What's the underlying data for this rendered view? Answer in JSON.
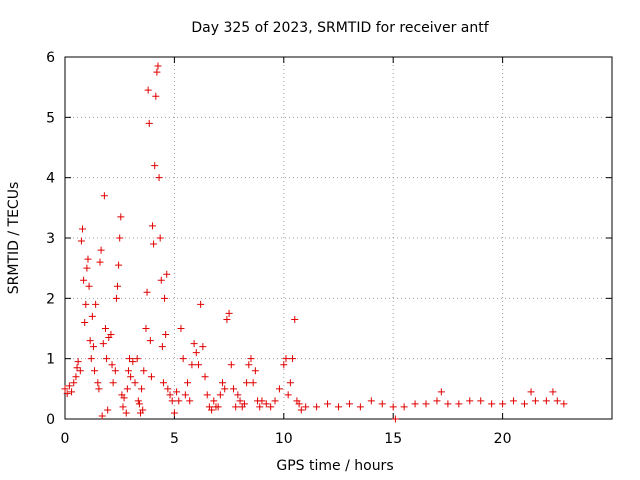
{
  "chart_data": {
    "type": "scatter",
    "title": "Day 325 of 2023, SRMTID for receiver antf",
    "xlabel": "GPS time / hours",
    "ylabel": "SRMTID / TECUs",
    "xlim": [
      0,
      25
    ],
    "ylim": [
      0,
      6
    ],
    "xticks": [
      0,
      5,
      10,
      15,
      20
    ],
    "xtick_labels": [
      "0",
      "5",
      "10",
      "15",
      "20"
    ],
    "yticks": [
      0,
      1,
      2,
      3,
      4,
      5,
      6
    ],
    "ytick_labels": [
      "0",
      "1",
      "2",
      "3",
      "4",
      "5",
      "6"
    ],
    "grid": true,
    "marker": "+",
    "series_color": "#e00000",
    "series": [
      {
        "name": "antf",
        "points": [
          [
            0.0,
            0.5
          ],
          [
            0.1,
            0.42
          ],
          [
            0.2,
            0.55
          ],
          [
            0.3,
            0.45
          ],
          [
            0.4,
            0.6
          ],
          [
            0.5,
            0.7
          ],
          [
            0.55,
            0.85
          ],
          [
            0.6,
            0.95
          ],
          [
            0.7,
            0.8
          ],
          [
            0.75,
            2.95
          ],
          [
            0.8,
            3.15
          ],
          [
            0.85,
            2.3
          ],
          [
            0.9,
            1.6
          ],
          [
            0.95,
            1.9
          ],
          [
            1.0,
            2.5
          ],
          [
            1.05,
            2.65
          ],
          [
            1.1,
            2.2
          ],
          [
            1.15,
            1.3
          ],
          [
            1.2,
            1.0
          ],
          [
            1.25,
            1.7
          ],
          [
            1.3,
            1.2
          ],
          [
            1.35,
            0.8
          ],
          [
            1.4,
            1.9
          ],
          [
            1.5,
            0.6
          ],
          [
            1.55,
            0.5
          ],
          [
            1.6,
            2.6
          ],
          [
            1.65,
            2.8
          ],
          [
            1.7,
            0.05
          ],
          [
            1.75,
            1.25
          ],
          [
            1.8,
            3.7
          ],
          [
            1.85,
            1.5
          ],
          [
            1.9,
            1.0
          ],
          [
            1.95,
            0.15
          ],
          [
            2.0,
            1.35
          ],
          [
            2.1,
            1.4
          ],
          [
            2.15,
            0.9
          ],
          [
            2.2,
            0.6
          ],
          [
            2.3,
            0.8
          ],
          [
            2.35,
            2.0
          ],
          [
            2.4,
            2.2
          ],
          [
            2.45,
            2.55
          ],
          [
            2.5,
            3.0
          ],
          [
            2.55,
            3.35
          ],
          [
            2.6,
            0.4
          ],
          [
            2.65,
            0.2
          ],
          [
            2.7,
            0.35
          ],
          [
            2.8,
            0.1
          ],
          [
            2.85,
            0.5
          ],
          [
            2.9,
            0.8
          ],
          [
            2.95,
            1.0
          ],
          [
            3.0,
            0.7
          ],
          [
            3.1,
            0.95
          ],
          [
            3.2,
            0.6
          ],
          [
            3.3,
            1.0
          ],
          [
            3.35,
            0.3
          ],
          [
            3.4,
            0.25
          ],
          [
            3.45,
            0.1
          ],
          [
            3.5,
            0.5
          ],
          [
            3.55,
            0.15
          ],
          [
            3.6,
            0.8
          ],
          [
            3.7,
            1.5
          ],
          [
            3.75,
            2.1
          ],
          [
            3.8,
            5.45
          ],
          [
            3.85,
            4.9
          ],
          [
            3.9,
            1.3
          ],
          [
            3.95,
            0.7
          ],
          [
            4.0,
            3.2
          ],
          [
            4.05,
            2.9
          ],
          [
            4.1,
            4.2
          ],
          [
            4.15,
            5.35
          ],
          [
            4.2,
            5.75
          ],
          [
            4.25,
            5.85
          ],
          [
            4.3,
            4.0
          ],
          [
            4.35,
            3.0
          ],
          [
            4.4,
            2.3
          ],
          [
            4.45,
            1.2
          ],
          [
            4.5,
            0.6
          ],
          [
            4.55,
            2.0
          ],
          [
            4.6,
            1.4
          ],
          [
            4.65,
            2.4
          ],
          [
            4.7,
            0.5
          ],
          [
            4.8,
            0.4
          ],
          [
            4.9,
            0.3
          ],
          [
            5.0,
            0.1
          ],
          [
            5.1,
            0.45
          ],
          [
            5.2,
            0.3
          ],
          [
            5.3,
            1.5
          ],
          [
            5.4,
            1.0
          ],
          [
            5.5,
            0.4
          ],
          [
            5.6,
            0.6
          ],
          [
            5.7,
            0.3
          ],
          [
            5.8,
            0.9
          ],
          [
            5.9,
            1.25
          ],
          [
            6.0,
            1.1
          ],
          [
            6.1,
            0.9
          ],
          [
            6.2,
            1.9
          ],
          [
            6.3,
            1.2
          ],
          [
            6.4,
            0.7
          ],
          [
            6.5,
            0.4
          ],
          [
            6.6,
            0.2
          ],
          [
            6.7,
            0.15
          ],
          [
            6.8,
            0.3
          ],
          [
            6.9,
            0.2
          ],
          [
            7.0,
            0.2
          ],
          [
            7.1,
            0.4
          ],
          [
            7.2,
            0.6
          ],
          [
            7.3,
            0.5
          ],
          [
            7.4,
            1.65
          ],
          [
            7.5,
            1.75
          ],
          [
            7.6,
            0.9
          ],
          [
            7.7,
            0.5
          ],
          [
            7.8,
            0.2
          ],
          [
            7.9,
            0.4
          ],
          [
            8.0,
            0.3
          ],
          [
            8.1,
            0.2
          ],
          [
            8.2,
            0.25
          ],
          [
            8.3,
            0.6
          ],
          [
            8.4,
            0.9
          ],
          [
            8.5,
            1.0
          ],
          [
            8.6,
            0.6
          ],
          [
            8.7,
            0.8
          ],
          [
            8.8,
            0.3
          ],
          [
            8.9,
            0.2
          ],
          [
            9.0,
            0.3
          ],
          [
            9.2,
            0.25
          ],
          [
            9.4,
            0.2
          ],
          [
            9.6,
            0.3
          ],
          [
            9.8,
            0.5
          ],
          [
            10.0,
            0.9
          ],
          [
            10.1,
            1.0
          ],
          [
            10.2,
            0.4
          ],
          [
            10.3,
            0.6
          ],
          [
            10.4,
            1.0
          ],
          [
            10.5,
            1.65
          ],
          [
            10.6,
            0.3
          ],
          [
            10.7,
            0.25
          ],
          [
            10.8,
            0.15
          ],
          [
            11.0,
            0.2
          ],
          [
            11.5,
            0.2
          ],
          [
            12.0,
            0.25
          ],
          [
            12.5,
            0.2
          ],
          [
            13.0,
            0.25
          ],
          [
            13.5,
            0.2
          ],
          [
            14.0,
            0.3
          ],
          [
            14.5,
            0.25
          ],
          [
            15.0,
            0.2
          ],
          [
            15.1,
            0.0
          ],
          [
            15.5,
            0.2
          ],
          [
            16.0,
            0.25
          ],
          [
            16.5,
            0.25
          ],
          [
            17.0,
            0.3
          ],
          [
            17.2,
            0.45
          ],
          [
            17.5,
            0.25
          ],
          [
            18.0,
            0.25
          ],
          [
            18.5,
            0.3
          ],
          [
            19.0,
            0.3
          ],
          [
            19.5,
            0.25
          ],
          [
            20.0,
            0.25
          ],
          [
            20.5,
            0.3
          ],
          [
            21.0,
            0.25
          ],
          [
            21.3,
            0.45
          ],
          [
            21.5,
            0.3
          ],
          [
            22.0,
            0.3
          ],
          [
            22.3,
            0.45
          ],
          [
            22.5,
            0.3
          ],
          [
            22.8,
            0.25
          ]
        ]
      }
    ]
  }
}
